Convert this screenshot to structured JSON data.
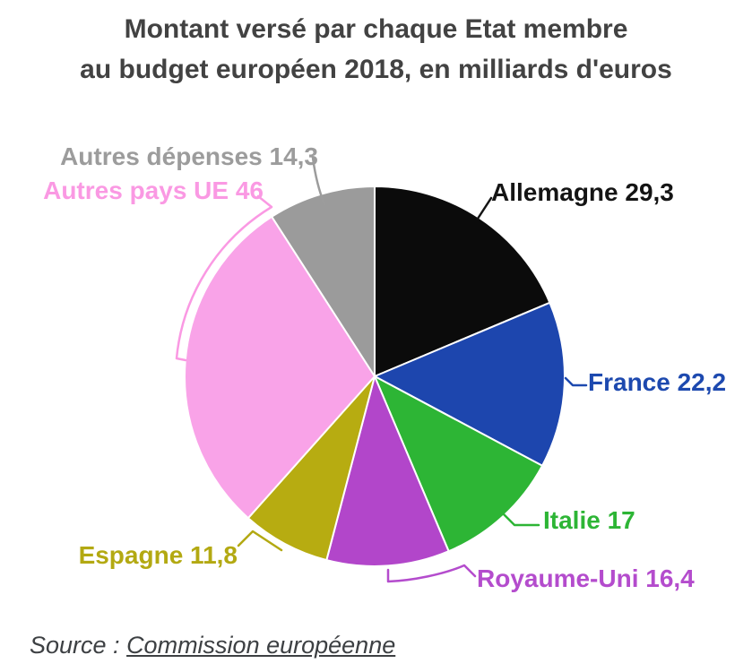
{
  "header": {
    "title_line1": "Montant versé par chaque Etat membre",
    "title_line2": "au budget européen 2018, en milliards d'euros"
  },
  "chart_data": {
    "type": "pie",
    "title": "Montant versé par chaque Etat membre au budget européen 2018, en milliards d'euros",
    "value_unit": "milliards d'euros",
    "total": 157,
    "start_angle_deg": 0,
    "direction": "clockwise",
    "slices": [
      {
        "id": "allemagne",
        "name": "Allemagne",
        "value": 29.3,
        "display": "Allemagne 29,3",
        "color": "#0b0b0b",
        "label_color": "#141414"
      },
      {
        "id": "france",
        "name": "France",
        "value": 22.2,
        "display": "France 22,2",
        "color": "#1d46ae",
        "label_color": "#1d49af"
      },
      {
        "id": "italie",
        "name": "Italie",
        "value": 17,
        "display": "Italie 17",
        "color": "#2db535",
        "label_color": "#2db535"
      },
      {
        "id": "royaume-uni",
        "name": "Royaume-Uni",
        "value": 16.4,
        "display": "Royaume-Uni 16,4",
        "color": "#b246ca",
        "label_color": "#b44ccd"
      },
      {
        "id": "espagne",
        "name": "Espagne",
        "value": 11.8,
        "display": "Espagne 11,8",
        "color": "#b7ac11",
        "label_color": "#b3a912"
      },
      {
        "id": "autres-pays-ue",
        "name": "Autres pays UE",
        "value": 46,
        "display": "Autres pays UE 46",
        "color": "#f9a3e8",
        "label_color": "#fa99e3"
      },
      {
        "id": "autres-depenses",
        "name": "Autres dépenses",
        "value": 14.3,
        "display": "Autres dépenses 14,3",
        "color": "#9b9b9b",
        "label_color": "#9c9c9c"
      }
    ]
  },
  "footer": {
    "source_prefix": "Source : ",
    "source_link": "Commission européenne"
  },
  "colors": {
    "background": "#ffffff",
    "title": "#424242",
    "source": "#3d4043"
  }
}
